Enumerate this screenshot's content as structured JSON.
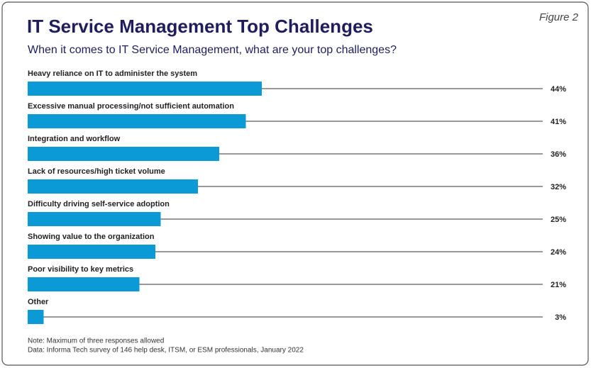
{
  "chart_data": {
    "type": "bar",
    "orientation": "horizontal",
    "figure_label": "Figure 2",
    "title": "IT Service Management Top Challenges",
    "subtitle": "When it comes to IT Service Management, what are your top challenges?",
    "categories": [
      "Heavy reliance on IT to administer the system",
      "Excessive manual processing/not sufficient automation",
      "Integration and workflow",
      "Lack of resources/high ticket volume",
      "Difficulty driving self-service adoption",
      "Showing value to the organization",
      "Poor visibility to key metrics",
      "Other"
    ],
    "values": [
      44,
      41,
      36,
      32,
      25,
      24,
      21,
      3
    ],
    "value_labels": [
      "44%",
      "41%",
      "36%",
      "32%",
      "25%",
      "24%",
      "21%",
      "3%"
    ],
    "color": "#0b9ad6",
    "notes": [
      "Note: Maximum of three responses allowed",
      "Data: Informa Tech survey of 146 help desk, ITSM, or ESM professionals, January 2022"
    ]
  }
}
